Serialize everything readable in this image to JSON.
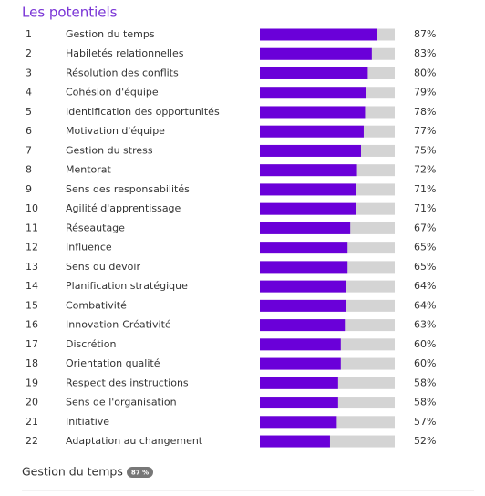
{
  "chart_data": {
    "type": "bar",
    "orientation": "horizontal",
    "title": "Les potentiels",
    "ranks": [
      1,
      2,
      3,
      4,
      5,
      6,
      7,
      8,
      9,
      10,
      11,
      12,
      13,
      14,
      15,
      16,
      17,
      18,
      19,
      20,
      21,
      22
    ],
    "categories": [
      "Gestion du temps",
      "Habiletés relationnelles",
      "Résolution des conflits",
      "Cohésion d'équipe",
      "Identification des opportunités",
      "Motivation d'équipe",
      "Gestion du stress",
      "Mentorat",
      "Sens des responsabilités",
      "Agilité d'apprentissage",
      "Réseautage",
      "Influence",
      "Sens du devoir",
      "Planification stratégique",
      "Combativité",
      "Innovation-Créativité",
      "Discrétion",
      "Orientation qualité",
      "Respect des instructions",
      "Sens de l'organisation",
      "Initiative",
      "Adaptation au changement"
    ],
    "values": [
      87,
      83,
      80,
      79,
      78,
      77,
      75,
      72,
      71,
      71,
      67,
      65,
      65,
      64,
      64,
      63,
      60,
      60,
      58,
      58,
      57,
      52
    ],
    "value_labels": [
      "87%",
      "83%",
      "80%",
      "79%",
      "78%",
      "77%",
      "75%",
      "72%",
      "71%",
      "71%",
      "67%",
      "65%",
      "65%",
      "64%",
      "64%",
      "63%",
      "60%",
      "60%",
      "58%",
      "58%",
      "57%",
      "52%"
    ],
    "color": "#6a00d9",
    "track_color": "#d4d4d4",
    "xlim": [
      0,
      100
    ]
  },
  "footer": {
    "label": "Gestion du temps",
    "badge": "87 %"
  }
}
